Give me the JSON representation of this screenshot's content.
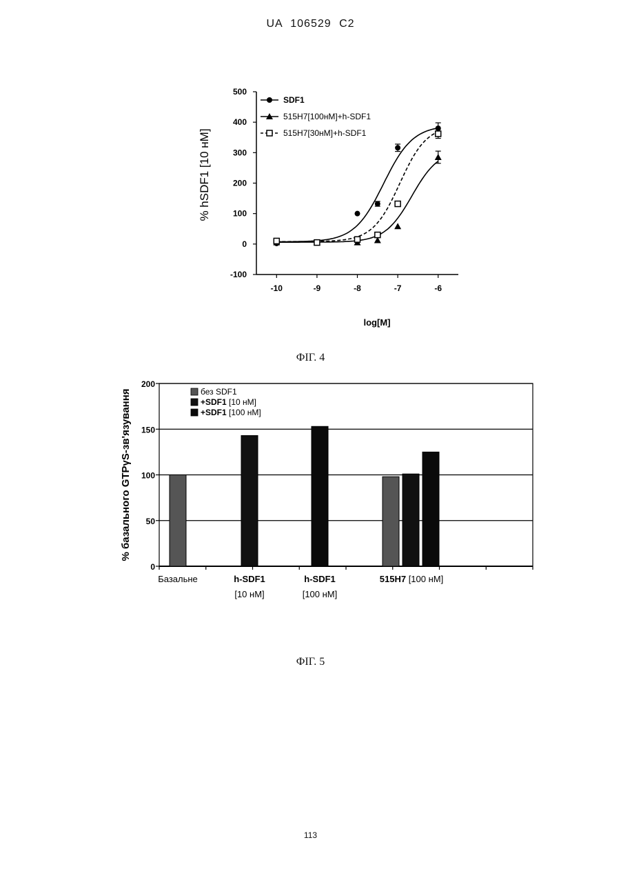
{
  "page": {
    "header": "UA 106529 C2",
    "caption_fig4": "ФІГ. 4",
    "caption_fig5": "ФІГ. 5",
    "page_number": "113"
  },
  "chart_data": [
    {
      "type": "scatter",
      "xlabel": "log[M]",
      "ylabel": "% hSDF1 [10 нМ]",
      "xlim": [
        -10.5,
        -5.5
      ],
      "ylim": [
        -100,
        500
      ],
      "xticks": [
        "-10",
        "-9",
        "-8",
        "-7",
        "-6"
      ],
      "yticks": [
        "-100",
        "0",
        "100",
        "200",
        "300",
        "400",
        "500"
      ],
      "legend_position": "top-left",
      "series": [
        {
          "name": "SDF1",
          "marker": "circle",
          "line": "solid",
          "x": [
            -10,
            -9,
            -8,
            -7.5,
            -7,
            -6
          ],
          "y": [
            2,
            5,
            100,
            132,
            316,
            380
          ],
          "err": [
            0,
            0,
            0,
            8,
            12,
            18
          ],
          "fit": {
            "bottom": 7,
            "top": 390,
            "logEC50": -7.35,
            "hill": 1.2
          }
        },
        {
          "name": "515H7[100нМ]+h-SDF1",
          "marker": "triangle",
          "line": "solid",
          "x": [
            -10,
            -9,
            -8,
            -7.5,
            -7,
            -6
          ],
          "y": [
            5,
            5,
            5,
            12,
            58,
            285
          ],
          "err": [
            0,
            0,
            0,
            0,
            0,
            20
          ],
          "fit": {
            "bottom": 6,
            "top": 310,
            "logEC50": -6.65,
            "hill": 1.3
          }
        },
        {
          "name": "515H7[30нМ]+h-SDF1",
          "marker": "square-open",
          "line": "dashed",
          "x": [
            -10,
            -9,
            -8,
            -7.5,
            -7,
            -6
          ],
          "y": [
            10,
            5,
            15,
            30,
            132,
            362
          ],
          "err": [
            0,
            0,
            0,
            0,
            0,
            15
          ],
          "fit": {
            "bottom": 8,
            "top": 390,
            "logEC50": -6.95,
            "hill": 1.3
          }
        }
      ]
    },
    {
      "type": "bar",
      "ylabel": "% базального GTPγS-зв'язування",
      "ylim": [
        0,
        200
      ],
      "yticks": [
        "0",
        "50",
        "100",
        "150",
        "200"
      ],
      "grid": true,
      "legend_position": "top-left",
      "legend": [
        {
          "label": "без SDF1",
          "bold": ""
        },
        {
          "label": " [10 нМ]",
          "bold": "+SDF1"
        },
        {
          "label": " [100 нМ]",
          "bold": "+SDF1"
        }
      ],
      "groups": [
        {
          "label_bold": "",
          "label": "Базальне",
          "label2": ""
        },
        {
          "label_bold": "h-SDF1",
          "label": "",
          "label2": "[10 нМ]"
        },
        {
          "label_bold": "h-SDF1",
          "label": "",
          "label2": "[100 нМ]"
        },
        {
          "label_bold": "515H7",
          "label": " [100 нМ]",
          "label2": ""
        }
      ],
      "bars": [
        {
          "group": 0,
          "series": 0,
          "value": 100
        },
        {
          "group": 1,
          "series": 1,
          "value": 143
        },
        {
          "group": 2,
          "series": 2,
          "value": 153
        },
        {
          "group": 3,
          "series": 0,
          "value": 98
        },
        {
          "group": 3,
          "series": 1,
          "value": 101
        },
        {
          "group": 3,
          "series": 2,
          "value": 125
        }
      ],
      "colors": [
        "#555555",
        "#111111",
        "#0a0a0a"
      ]
    }
  ]
}
